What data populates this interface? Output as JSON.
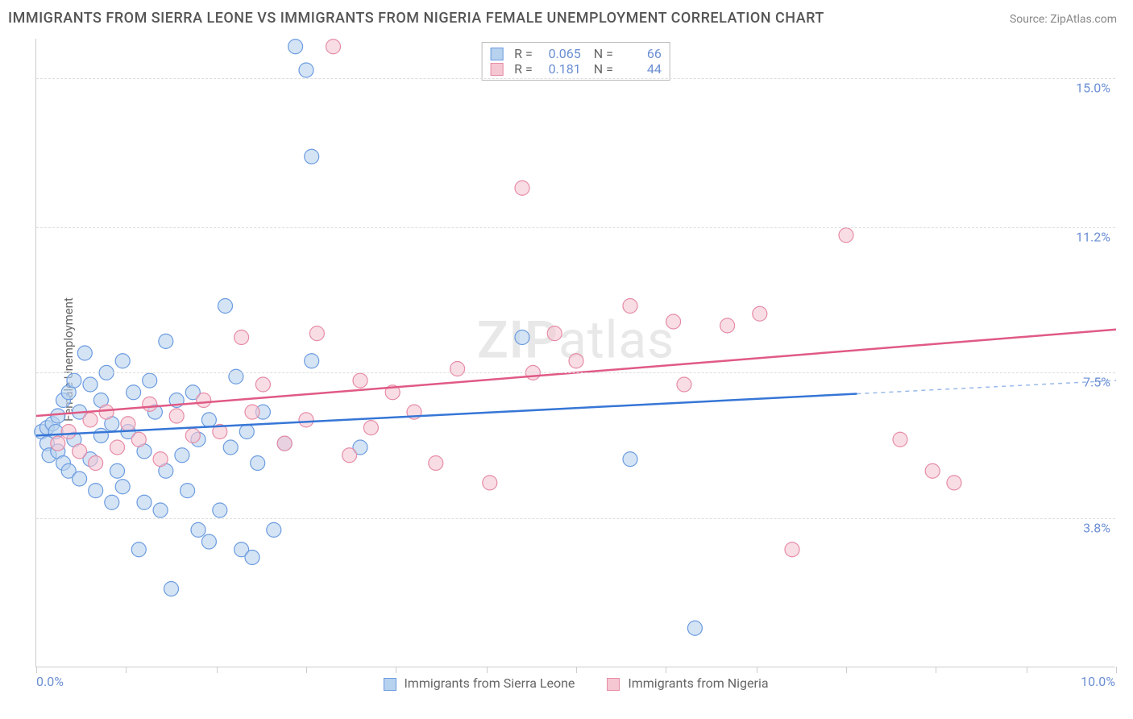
{
  "title": "IMMIGRANTS FROM SIERRA LEONE VS IMMIGRANTS FROM NIGERIA FEMALE UNEMPLOYMENT CORRELATION CHART",
  "source": "Source: ZipAtlas.com",
  "ylabel": "Female Unemployment",
  "watermark_a": "ZIP",
  "watermark_b": "atlas",
  "chart": {
    "type": "scatter-with-regression",
    "xlim": [
      0,
      10
    ],
    "ylim": [
      0,
      16
    ],
    "x_start_label": "0.0%",
    "x_end_label": "10.0%",
    "y_ticks": [
      {
        "v": 3.8,
        "label": "3.8%"
      },
      {
        "v": 7.5,
        "label": "7.5%"
      },
      {
        "v": 11.2,
        "label": "11.2%"
      },
      {
        "v": 15.0,
        "label": "15.0%"
      }
    ],
    "x_ticks": [
      0,
      0.83,
      1.67,
      2.5,
      3.33,
      4.17,
      5.0,
      5.83,
      6.67,
      7.5,
      8.33,
      9.17,
      10
    ],
    "grid_color": "#dddddd",
    "axis_color": "#cccccc",
    "background": "#ffffff",
    "marker_radius": 9,
    "marker_stroke_width": 1.2,
    "series": [
      {
        "name": "Immigrants from Sierra Leone",
        "fill": "#b7d2ef",
        "stroke": "#6b9be0",
        "line_color": "#3676d6",
        "R": "0.065",
        "N": "66",
        "regression": {
          "x1": 0,
          "y1": 5.9,
          "x2": 10,
          "y2": 7.3,
          "solid_until_x": 7.6
        },
        "points": [
          [
            0.05,
            6.0
          ],
          [
            0.1,
            6.1
          ],
          [
            0.1,
            5.7
          ],
          [
            0.12,
            5.4
          ],
          [
            0.15,
            6.2
          ],
          [
            0.18,
            6.0
          ],
          [
            0.2,
            5.5
          ],
          [
            0.2,
            6.4
          ],
          [
            0.25,
            6.8
          ],
          [
            0.25,
            5.2
          ],
          [
            0.3,
            7.0
          ],
          [
            0.3,
            5.0
          ],
          [
            0.35,
            5.8
          ],
          [
            0.35,
            7.3
          ],
          [
            0.4,
            6.5
          ],
          [
            0.4,
            4.8
          ],
          [
            0.45,
            8.0
          ],
          [
            0.5,
            5.3
          ],
          [
            0.5,
            7.2
          ],
          [
            0.55,
            4.5
          ],
          [
            0.6,
            6.8
          ],
          [
            0.6,
            5.9
          ],
          [
            0.65,
            7.5
          ],
          [
            0.7,
            4.2
          ],
          [
            0.7,
            6.2
          ],
          [
            0.75,
            5.0
          ],
          [
            0.8,
            7.8
          ],
          [
            0.8,
            4.6
          ],
          [
            0.85,
            6.0
          ],
          [
            0.9,
            7.0
          ],
          [
            0.95,
            3.0
          ],
          [
            1.0,
            4.2
          ],
          [
            1.0,
            5.5
          ],
          [
            1.05,
            7.3
          ],
          [
            1.1,
            6.5
          ],
          [
            1.15,
            4.0
          ],
          [
            1.2,
            8.3
          ],
          [
            1.2,
            5.0
          ],
          [
            1.25,
            2.0
          ],
          [
            1.3,
            6.8
          ],
          [
            1.35,
            5.4
          ],
          [
            1.4,
            4.5
          ],
          [
            1.45,
            7.0
          ],
          [
            1.5,
            3.5
          ],
          [
            1.5,
            5.8
          ],
          [
            1.6,
            3.2
          ],
          [
            1.6,
            6.3
          ],
          [
            1.7,
            4.0
          ],
          [
            1.75,
            9.2
          ],
          [
            1.8,
            5.6
          ],
          [
            1.85,
            7.4
          ],
          [
            1.9,
            3.0
          ],
          [
            1.95,
            6.0
          ],
          [
            2.0,
            2.8
          ],
          [
            2.05,
            5.2
          ],
          [
            2.1,
            6.5
          ],
          [
            2.2,
            3.5
          ],
          [
            2.3,
            5.7
          ],
          [
            2.4,
            15.8
          ],
          [
            2.5,
            15.2
          ],
          [
            2.55,
            13.0
          ],
          [
            2.55,
            7.8
          ],
          [
            3.0,
            5.6
          ],
          [
            4.5,
            8.4
          ],
          [
            5.5,
            5.3
          ],
          [
            6.1,
            1.0
          ]
        ]
      },
      {
        "name": "Immigrants from Nigeria",
        "fill": "#f5c7d3",
        "stroke": "#e68ba5",
        "line_color": "#e05a85",
        "R": "0.181",
        "N": "44",
        "regression": {
          "x1": 0,
          "y1": 6.4,
          "x2": 10,
          "y2": 8.6,
          "solid_until_x": 10
        },
        "points": [
          [
            0.2,
            5.7
          ],
          [
            0.3,
            6.0
          ],
          [
            0.4,
            5.5
          ],
          [
            0.5,
            6.3
          ],
          [
            0.55,
            5.2
          ],
          [
            0.65,
            6.5
          ],
          [
            0.75,
            5.6
          ],
          [
            0.85,
            6.2
          ],
          [
            0.95,
            5.8
          ],
          [
            1.05,
            6.7
          ],
          [
            1.15,
            5.3
          ],
          [
            1.3,
            6.4
          ],
          [
            1.45,
            5.9
          ],
          [
            1.55,
            6.8
          ],
          [
            1.7,
            6.0
          ],
          [
            1.9,
            8.4
          ],
          [
            2.0,
            6.5
          ],
          [
            2.1,
            7.2
          ],
          [
            2.3,
            5.7
          ],
          [
            2.5,
            6.3
          ],
          [
            2.6,
            8.5
          ],
          [
            2.75,
            15.8
          ],
          [
            2.9,
            5.4
          ],
          [
            3.0,
            7.3
          ],
          [
            3.1,
            6.1
          ],
          [
            3.3,
            7.0
          ],
          [
            3.5,
            6.5
          ],
          [
            3.7,
            5.2
          ],
          [
            3.9,
            7.6
          ],
          [
            4.2,
            4.7
          ],
          [
            4.5,
            12.2
          ],
          [
            4.6,
            7.5
          ],
          [
            4.8,
            8.5
          ],
          [
            5.0,
            7.8
          ],
          [
            5.5,
            9.2
          ],
          [
            5.9,
            8.8
          ],
          [
            6.0,
            7.2
          ],
          [
            6.4,
            8.7
          ],
          [
            6.7,
            9.0
          ],
          [
            7.0,
            3.0
          ],
          [
            7.5,
            11.0
          ],
          [
            8.0,
            5.8
          ],
          [
            8.3,
            5.0
          ],
          [
            8.5,
            4.7
          ]
        ]
      }
    ]
  },
  "legend": {
    "label_a": "Immigrants from Sierra Leone",
    "label_b": "Immigrants from Nigeria"
  }
}
